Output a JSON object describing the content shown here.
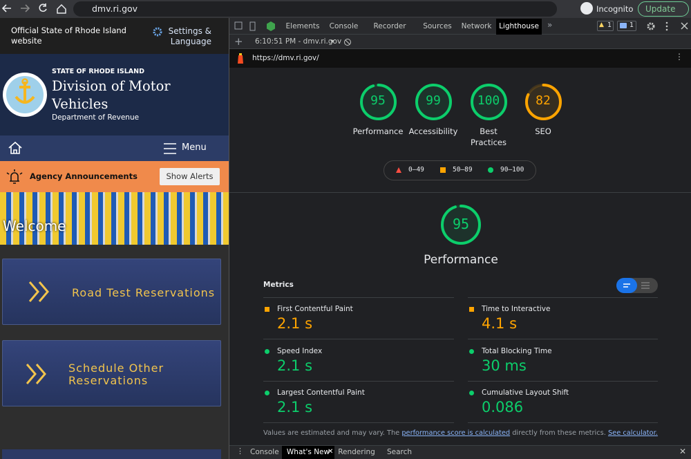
{
  "browser": {
    "url": "dmv.ri.gov",
    "profile": "Incognito",
    "update": "Update"
  },
  "site": {
    "notice": "Official State of Rhode Island website",
    "settings": "Settings & Language",
    "state": "STATE OF RHODE ISLAND",
    "agency": "Division of Motor Vehicles",
    "department": "Department of Revenue",
    "menu": "Menu",
    "announcements": "Agency Announcements",
    "alert_button": "Show Alerts",
    "hero": "Welcome",
    "cards": [
      "Road Test Reservations",
      "Schedule Other Reservations"
    ]
  },
  "devtools": {
    "tabs": [
      "Elements",
      "Console",
      "Recorder",
      "Sources",
      "Network",
      "Lighthouse"
    ],
    "active_tab": 5,
    "warnings": 1,
    "messages": 1,
    "session": "6:10:51 PM - dmv.ri.gov",
    "report_url": "https://dmv.ri.gov/",
    "scores": [
      {
        "label": "Performance",
        "value": 95,
        "color": "#0cce6b"
      },
      {
        "label": "Accessibility",
        "value": 99,
        "color": "#0cce6b"
      },
      {
        "label": "Best Practices",
        "value": 100,
        "color": "#0cce6b"
      },
      {
        "label": "SEO",
        "value": 82,
        "color": "#ffa400"
      }
    ],
    "legend": [
      {
        "label": "0–49",
        "color": "#ff4e42",
        "marker": "triangle"
      },
      {
        "label": "50–89",
        "color": "#ffa400",
        "marker": "square"
      },
      {
        "label": "90–100",
        "color": "#0cce6b",
        "marker": "circle"
      }
    ],
    "metrics_title": "Metrics",
    "metrics": [
      {
        "name": "First Contentful Paint",
        "value": "2.1 s",
        "color": "#ffa400",
        "marker": "square"
      },
      {
        "name": "Time to Interactive",
        "value": "4.1 s",
        "color": "#ffa400",
        "marker": "square"
      },
      {
        "name": "Speed Index",
        "value": "2.1 s",
        "color": "#0cce6b",
        "marker": "circle"
      },
      {
        "name": "Total Blocking Time",
        "value": "30 ms",
        "color": "#0cce6b",
        "marker": "circle"
      },
      {
        "name": "Largest Contentful Paint",
        "value": "2.1 s",
        "color": "#0cce6b",
        "marker": "circle"
      },
      {
        "name": "Cumulative Layout Shift",
        "value": "0.086",
        "color": "#0cce6b",
        "marker": "circle"
      }
    ],
    "note": {
      "before": "Values are estimated and may vary. The ",
      "link1": "performance score is calculated",
      "middle": " directly from these metrics. ",
      "link2": "See calculator."
    },
    "drawer": [
      "Console",
      "What's New",
      "Rendering",
      "Search"
    ],
    "drawer_active": 1
  }
}
